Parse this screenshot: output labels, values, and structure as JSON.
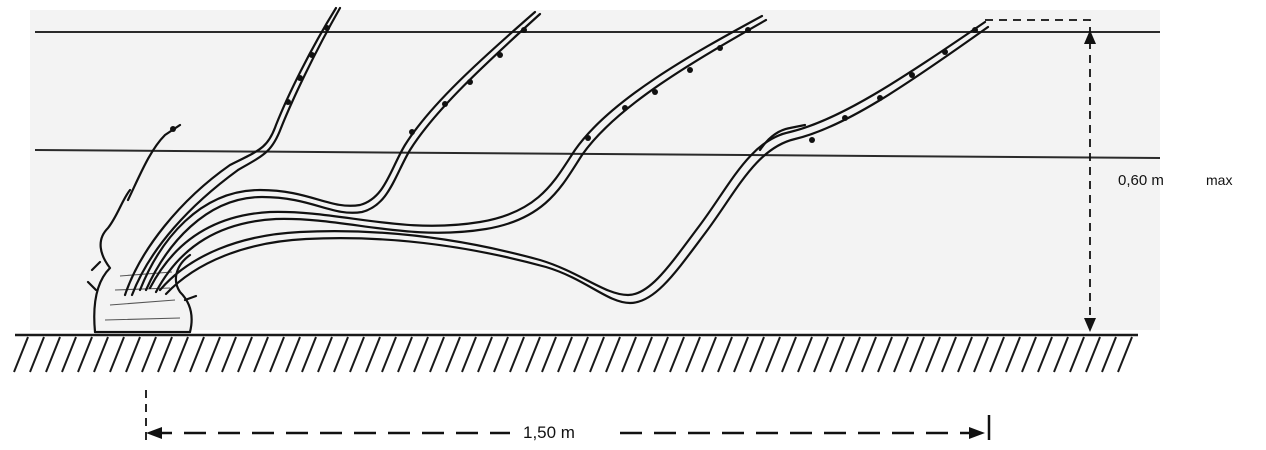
{
  "diagram": {
    "label_height": "0,60 m",
    "label_height_suffix": "max",
    "label_length": "1,50 m"
  },
  "style": {
    "line_color": "#111111",
    "background": "#ffffff"
  }
}
